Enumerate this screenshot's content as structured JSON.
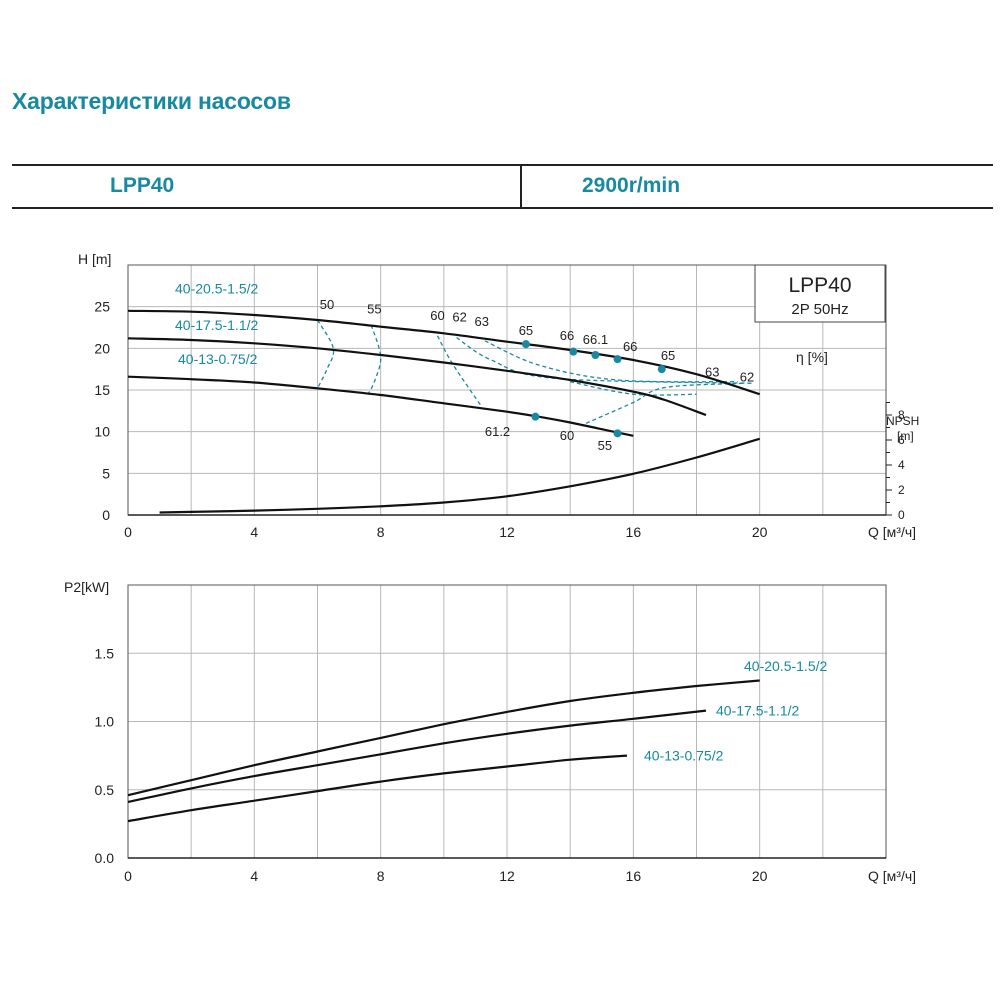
{
  "title": "Характеристики насосов",
  "header": {
    "model": "LPP40",
    "speed": "2900r/min"
  },
  "colors": {
    "accent": "#1789a0",
    "curve": "#111111",
    "grid": "#b8b8b8"
  },
  "chart_data": [
    {
      "type": "line",
      "legend_box": {
        "title": "LPP40",
        "subtitle": "2P  50Hz",
        "placement": "top-right"
      },
      "ylabel": "H [m]",
      "xlabel": "Q [м³/ч]",
      "xlim": [
        0,
        20
      ],
      "ylim": [
        0,
        30
      ],
      "xticks": [
        0,
        4,
        8,
        12,
        16,
        20
      ],
      "yticks": [
        0,
        5,
        10,
        15,
        20,
        25
      ],
      "grid": true,
      "efficiency_label": "η [%]",
      "npsh_axis": {
        "label_top": "NPSH",
        "label_unit": "[m]",
        "ticks": [
          0,
          2,
          4,
          6,
          8
        ],
        "lim": [
          0,
          20
        ]
      },
      "series": [
        {
          "name": "40-20.5-1.5/2",
          "x": [
            0,
            2,
            4,
            6,
            8,
            10,
            12,
            14,
            16,
            18,
            20
          ],
          "y": [
            24.5,
            24.4,
            24.0,
            23.4,
            22.6,
            21.8,
            20.8,
            19.8,
            18.6,
            16.9,
            14.5
          ]
        },
        {
          "name": "40-17.5-1.1/2",
          "x": [
            0,
            2,
            4,
            6,
            8,
            10,
            12,
            14,
            16,
            17,
            18.3
          ],
          "y": [
            21.2,
            21.0,
            20.6,
            20.0,
            19.2,
            18.3,
            17.3,
            16.2,
            14.8,
            13.8,
            12.0
          ]
        },
        {
          "name": "40-13-0.75/2",
          "x": [
            0,
            2,
            4,
            6,
            8,
            10,
            12,
            13,
            14,
            15,
            16
          ],
          "y": [
            16.6,
            16.3,
            15.9,
            15.2,
            14.4,
            13.4,
            12.4,
            11.8,
            11.1,
            10.3,
            9.5
          ]
        },
        {
          "name": "NPSH",
          "x": [
            0,
            2,
            4,
            6,
            8,
            10,
            12,
            14,
            16,
            18,
            20
          ],
          "y": [
            0.2,
            0.25,
            0.35,
            0.5,
            0.7,
            1.0,
            1.5,
            2.3,
            3.3,
            4.6,
            6.1
          ]
        }
      ],
      "efficiency_labels": [
        {
          "text": "50",
          "x": 6.3,
          "y": 24.7
        },
        {
          "text": "55",
          "x": 7.8,
          "y": 24.2
        },
        {
          "text": "60",
          "x": 9.8,
          "y": 23.4
        },
        {
          "text": "62",
          "x": 10.5,
          "y": 23.2
        },
        {
          "text": "63",
          "x": 11.2,
          "y": 22.7
        },
        {
          "text": "65",
          "x": 12.6,
          "y": 21.6
        },
        {
          "text": "66",
          "x": 13.9,
          "y": 21.0
        },
        {
          "text": "66.1",
          "x": 14.8,
          "y": 20.5
        },
        {
          "text": "66",
          "x": 15.9,
          "y": 19.7
        },
        {
          "text": "65",
          "x": 17.1,
          "y": 18.6
        },
        {
          "text": "63",
          "x": 18.5,
          "y": 16.6
        },
        {
          "text": "62",
          "x": 19.6,
          "y": 16.0
        },
        {
          "text": "61.2",
          "x": 11.7,
          "y": 9.5
        },
        {
          "text": "60",
          "x": 13.9,
          "y": 9.0
        },
        {
          "text": "55",
          "x": 15.1,
          "y": 7.8
        }
      ],
      "efficiency_points": [
        {
          "x": 12.6,
          "y": 20.5
        },
        {
          "x": 14.1,
          "y": 19.6
        },
        {
          "x": 14.8,
          "y": 19.2
        },
        {
          "x": 15.5,
          "y": 18.7
        },
        {
          "x": 16.9,
          "y": 17.5
        },
        {
          "x": 12.9,
          "y": 11.8
        },
        {
          "x": 15.5,
          "y": 9.8
        }
      ]
    },
    {
      "type": "line",
      "ylabel": "P2[kW]",
      "xlabel": "Q [м³/ч]",
      "xlim": [
        0,
        20
      ],
      "ylim": [
        0,
        2.0
      ],
      "xticks": [
        0,
        4,
        8,
        12,
        16,
        20
      ],
      "yticks": [
        0.0,
        0.5,
        1.0,
        1.5
      ],
      "grid": true,
      "series": [
        {
          "name": "40-20.5-1.5/2",
          "x": [
            0,
            2,
            4,
            6,
            8,
            10,
            12,
            14,
            16,
            18,
            20
          ],
          "y": [
            0.46,
            0.57,
            0.68,
            0.78,
            0.88,
            0.98,
            1.07,
            1.15,
            1.21,
            1.26,
            1.3
          ]
        },
        {
          "name": "40-17.5-1.1/2",
          "x": [
            0,
            2,
            4,
            6,
            8,
            10,
            12,
            14,
            16,
            18.3
          ],
          "y": [
            0.41,
            0.51,
            0.6,
            0.68,
            0.76,
            0.84,
            0.91,
            0.97,
            1.02,
            1.08
          ]
        },
        {
          "name": "40-13-0.75/2",
          "x": [
            0,
            2,
            4,
            6,
            8,
            10,
            12,
            14,
            15.8
          ],
          "y": [
            0.27,
            0.35,
            0.42,
            0.49,
            0.56,
            0.62,
            0.67,
            0.72,
            0.75
          ]
        }
      ]
    }
  ]
}
